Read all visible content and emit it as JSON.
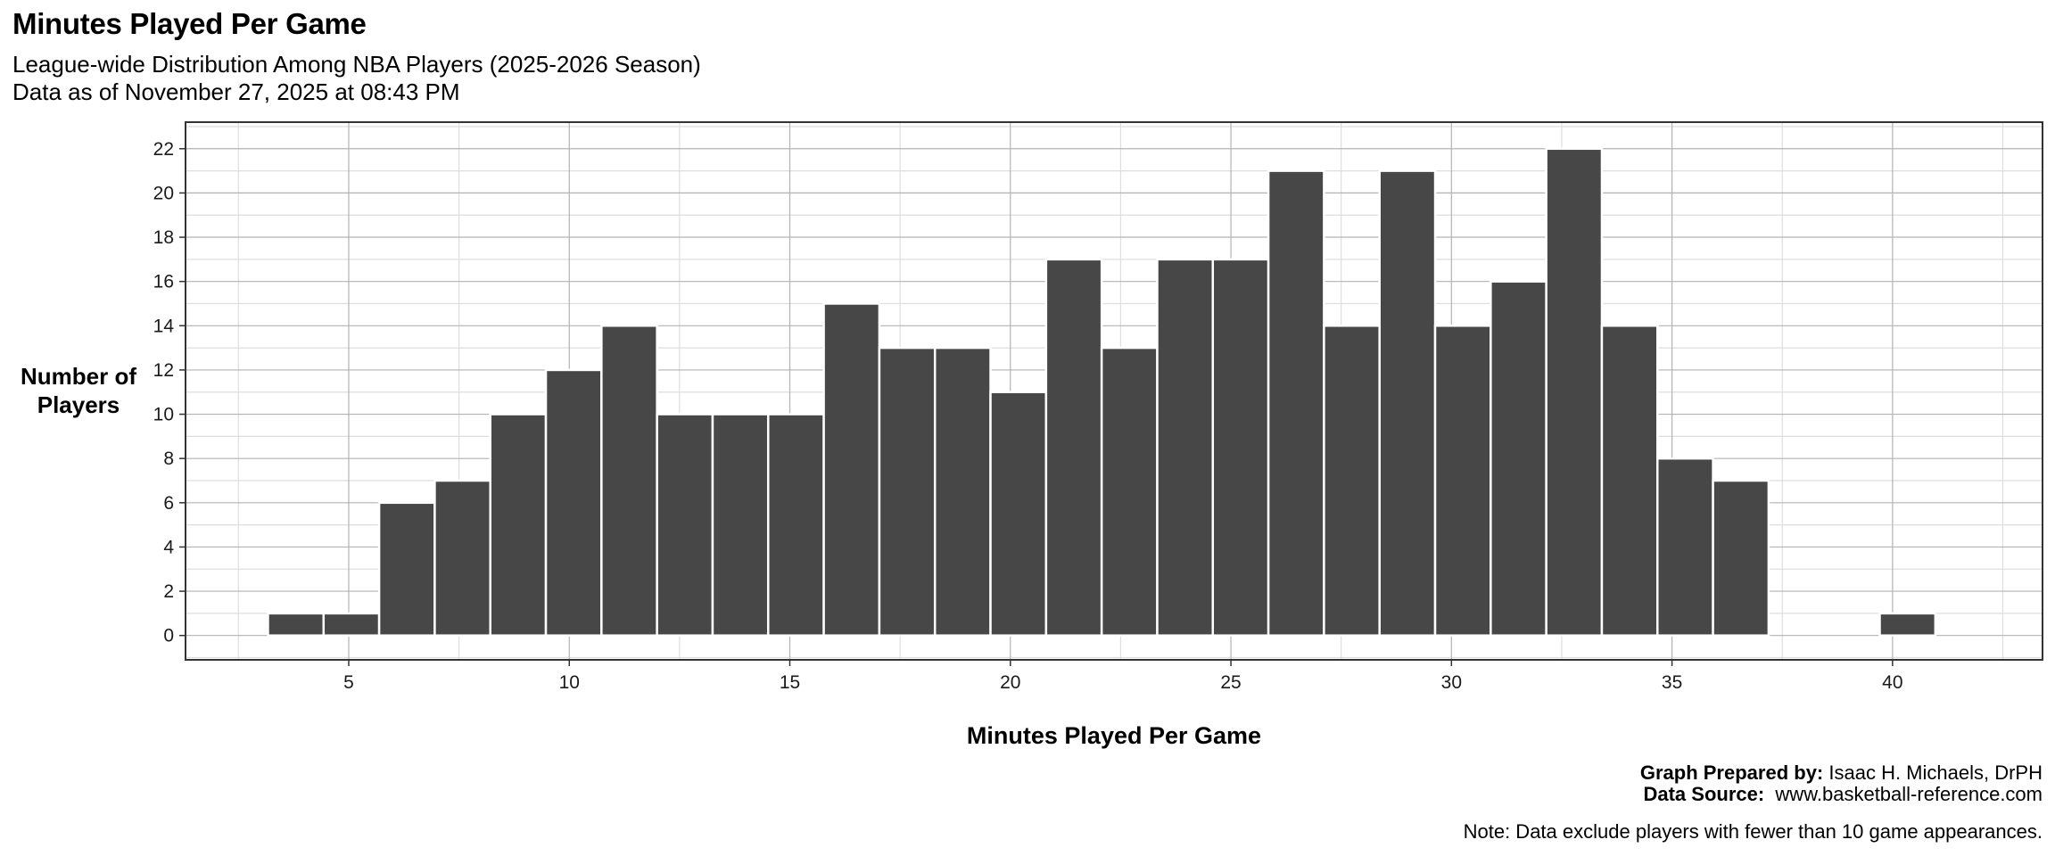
{
  "header": {
    "title": "Minutes Played Per Game",
    "subtitle_line1": "League-wide Distribution Among NBA Players (2025-2026 Season)",
    "subtitle_line2": "Data as of November 27, 2025 at 08:43 PM"
  },
  "axes": {
    "ylabel_line1": "Number of",
    "ylabel_line2": "Players",
    "xlabel": "Minutes Played Per Game"
  },
  "footer": {
    "prepared_label": "Graph Prepared by:",
    "prepared_value": "Isaac H. Michaels, DrPH",
    "source_label": "Data Source:",
    "source_value": "www.basketball-reference.com",
    "note": "Note: Data exclude players with fewer than 10 game appearances."
  },
  "colors": {
    "bar_fill": "#474747",
    "bar_stroke": "#ffffff",
    "grid_major": "#b3b3b3",
    "grid_minor": "#dedede",
    "panel_border": "#333333"
  },
  "chart_data": {
    "type": "bar",
    "subtype": "histogram",
    "title": "Minutes Played Per Game",
    "subtitle": "League-wide Distribution Among NBA Players (2025-2026 Season) — Data as of November 27, 2025 at 08:43 PM",
    "xlabel": "Minutes Played Per Game",
    "ylabel": "Number of Players",
    "bin_width": 1.26,
    "bin_start": 3.17,
    "bins": [
      {
        "x0": 3.17,
        "x1": 4.43,
        "count": 1
      },
      {
        "x0": 4.43,
        "x1": 5.69,
        "count": 1
      },
      {
        "x0": 5.69,
        "x1": 6.95,
        "count": 6
      },
      {
        "x0": 6.95,
        "x1": 8.21,
        "count": 7
      },
      {
        "x0": 8.21,
        "x1": 9.47,
        "count": 10
      },
      {
        "x0": 9.47,
        "x1": 10.73,
        "count": 12
      },
      {
        "x0": 10.73,
        "x1": 11.99,
        "count": 14
      },
      {
        "x0": 11.99,
        "x1": 13.25,
        "count": 10
      },
      {
        "x0": 13.25,
        "x1": 14.51,
        "count": 10
      },
      {
        "x0": 14.51,
        "x1": 15.77,
        "count": 10
      },
      {
        "x0": 15.77,
        "x1": 17.03,
        "count": 15
      },
      {
        "x0": 17.03,
        "x1": 18.29,
        "count": 13
      },
      {
        "x0": 18.29,
        "x1": 19.55,
        "count": 13
      },
      {
        "x0": 19.55,
        "x1": 20.81,
        "count": 11
      },
      {
        "x0": 20.81,
        "x1": 22.07,
        "count": 17
      },
      {
        "x0": 22.07,
        "x1": 23.33,
        "count": 13
      },
      {
        "x0": 23.33,
        "x1": 24.59,
        "count": 17
      },
      {
        "x0": 24.59,
        "x1": 25.85,
        "count": 17
      },
      {
        "x0": 25.85,
        "x1": 27.11,
        "count": 21
      },
      {
        "x0": 27.11,
        "x1": 28.37,
        "count": 14
      },
      {
        "x0": 28.37,
        "x1": 29.63,
        "count": 21
      },
      {
        "x0": 29.63,
        "x1": 30.89,
        "count": 14
      },
      {
        "x0": 30.89,
        "x1": 32.15,
        "count": 16
      },
      {
        "x0": 32.15,
        "x1": 33.41,
        "count": 22
      },
      {
        "x0": 33.41,
        "x1": 34.67,
        "count": 14
      },
      {
        "x0": 34.67,
        "x1": 35.93,
        "count": 8
      },
      {
        "x0": 35.93,
        "x1": 37.19,
        "count": 7
      },
      {
        "x0": 37.19,
        "x1": 38.45,
        "count": 0
      },
      {
        "x0": 38.45,
        "x1": 39.71,
        "count": 0
      },
      {
        "x0": 39.71,
        "x1": 40.97,
        "count": 1
      }
    ],
    "xticks": [
      5,
      10,
      15,
      20,
      25,
      30,
      35,
      40
    ],
    "yticks": [
      0,
      2,
      4,
      6,
      8,
      10,
      12,
      14,
      16,
      18,
      20,
      22
    ],
    "xlim": [
      1.3,
      43.4
    ],
    "ylim": [
      -1.1,
      23.2
    ],
    "grid": true,
    "legend": null
  }
}
